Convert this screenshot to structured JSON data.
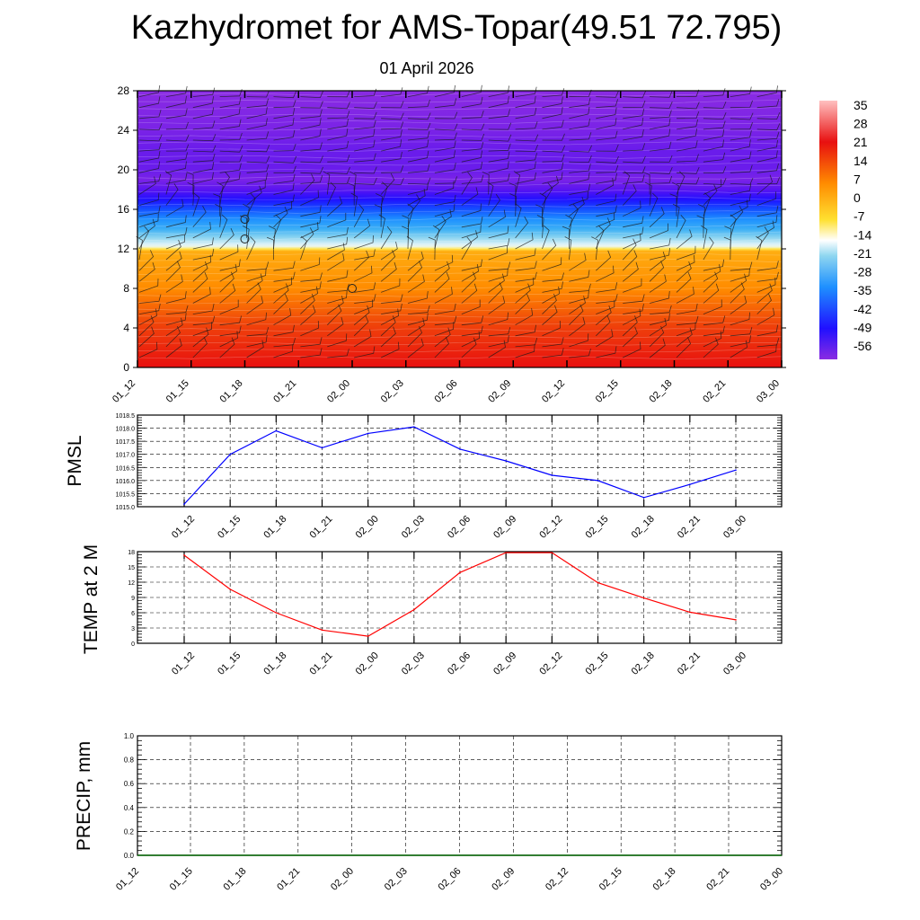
{
  "title": "Kazhydromet for AMS-Topar(49.51 72.795)",
  "subtitle": "01 April 2026",
  "colors": {
    "pmsl_line": "#0000ff",
    "temp_line": "#ff0000",
    "precip_line": "#006400",
    "grid": "#000000"
  },
  "chart_data": [
    {
      "name": "upper-air-cross-section",
      "type": "heatmap",
      "x_labels": [
        "01_12",
        "01_15",
        "01_18",
        "01_21",
        "02_00",
        "02_03",
        "02_06",
        "02_09",
        "02_12",
        "02_15",
        "02_18",
        "02_21",
        "03_00"
      ],
      "y_ticks": [
        "0",
        "4",
        "8",
        "12",
        "16",
        "20",
        "24",
        "28"
      ],
      "ylim": [
        0,
        28
      ],
      "colorbar_labels": [
        "35",
        "28",
        "21",
        "14",
        "7",
        "0",
        "-7",
        "-14",
        "-21",
        "-28",
        "-35",
        "-42",
        "-49",
        "-56"
      ],
      "temperature_profile_height": [
        0,
        2,
        4,
        6,
        8,
        10,
        11.8,
        12.2,
        13,
        14,
        15,
        16,
        17,
        18,
        19,
        20,
        22,
        24,
        26,
        28
      ],
      "temperature_profile_value": [
        28,
        25,
        22,
        18,
        14,
        11,
        8,
        -12,
        -20,
        -28,
        -35,
        -42,
        -49,
        -56,
        -60,
        -58,
        -58,
        -60,
        -61,
        -62
      ],
      "calm_markers": [
        {
          "time": "01_18",
          "height": 15
        },
        {
          "time": "01_18",
          "height": 13
        },
        {
          "time": "02_00",
          "height": 8
        }
      ]
    },
    {
      "name": "pmsl",
      "type": "line",
      "ylabel": "PMSL",
      "x": [
        "01_12",
        "01_15",
        "01_18",
        "01_21",
        "02_00",
        "02_03",
        "02_06",
        "02_09",
        "02_12",
        "02_15",
        "02_18",
        "02_21",
        "03_00"
      ],
      "values": [
        1015.1,
        1017.0,
        1017.9,
        1017.25,
        1017.8,
        1018.05,
        1017.2,
        1016.75,
        1016.2,
        1016.0,
        1015.35,
        1015.85,
        1016.4
      ],
      "ylim": [
        1015.0,
        1018.5
      ],
      "y_ticks": [
        "1015.0",
        "1015.5",
        "1016.0",
        "1016.5",
        "1017.0",
        "1017.5",
        "1018.0",
        "1018.5"
      ]
    },
    {
      "name": "temp-2m",
      "type": "line",
      "ylabel": "TEMP at 2 M",
      "x": [
        "01_12",
        "01_15",
        "01_18",
        "01_21",
        "02_00",
        "02_03",
        "02_06",
        "02_09",
        "02_12",
        "02_15",
        "02_18",
        "02_21",
        "03_00"
      ],
      "values": [
        17.3,
        10.6,
        6.0,
        2.6,
        1.4,
        6.6,
        13.9,
        17.8,
        17.8,
        11.9,
        8.9,
        6.1,
        4.6
      ],
      "ylim": [
        0,
        18
      ],
      "y_ticks": [
        "0",
        "3",
        "6",
        "9",
        "12",
        "15",
        "18"
      ]
    },
    {
      "name": "precip",
      "type": "line",
      "ylabel": "PRECIP, mm",
      "x": [
        "01_12",
        "01_15",
        "01_18",
        "01_21",
        "02_00",
        "02_03",
        "02_06",
        "02_09",
        "02_12",
        "02_15",
        "02_18",
        "02_21",
        "03_00"
      ],
      "values": [
        0,
        0,
        0,
        0,
        0,
        0,
        0,
        0,
        0,
        0,
        0,
        0,
        0
      ],
      "ylim": [
        0,
        1
      ],
      "y_ticks": [
        "0.0",
        "0.2",
        "0.4",
        "0.6",
        "0.8",
        "1.0"
      ]
    }
  ]
}
